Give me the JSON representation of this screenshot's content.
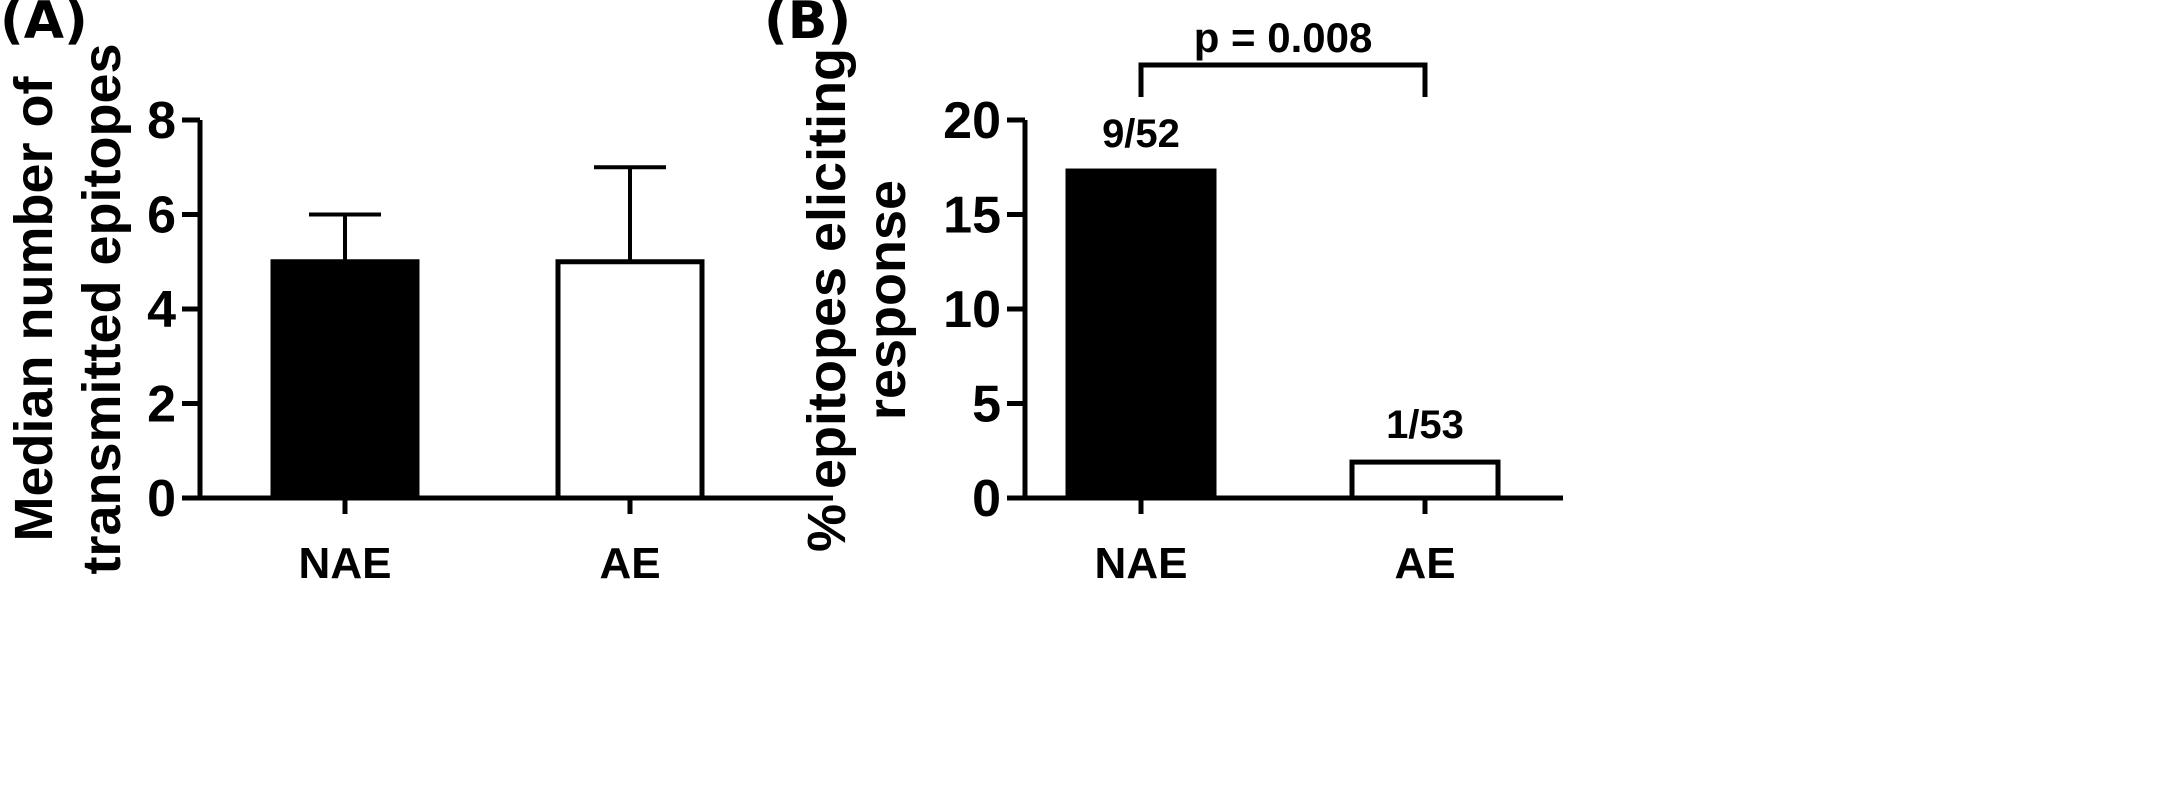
{
  "chart_data": [
    {
      "panel_label": "(A)",
      "type": "bar",
      "categories": [
        "NAE",
        "AE"
      ],
      "values": [
        5,
        5
      ],
      "error_upper": [
        6,
        7
      ],
      "bar_fill": [
        "#000000",
        "#ffffff"
      ],
      "ylabel_lines": [
        "Median number of",
        "transmitted epitopes"
      ],
      "xlabel": "",
      "ylim": [
        0,
        8
      ],
      "yticks": [
        0,
        2,
        4,
        6,
        8
      ],
      "ytick_labels": [
        "0",
        "2",
        "4",
        "6",
        "8"
      ],
      "grid": false
    },
    {
      "panel_label": "(B)",
      "type": "bar",
      "categories": [
        "NAE",
        "AE"
      ],
      "values": [
        17.3,
        1.9
      ],
      "data_labels": [
        "9/52",
        "1/53"
      ],
      "bar_fill": [
        "#000000",
        "#ffffff"
      ],
      "ylabel_lines": [
        "% epitopes eliciting",
        "response"
      ],
      "xlabel": "",
      "ylim": [
        0,
        20
      ],
      "yticks": [
        0,
        5,
        10,
        15,
        20
      ],
      "ytick_labels": [
        "0",
        "5",
        "10",
        "15",
        "20"
      ],
      "significance": {
        "between": [
          "NAE",
          "AE"
        ],
        "label": "p = 0.008"
      },
      "grid": false
    }
  ]
}
